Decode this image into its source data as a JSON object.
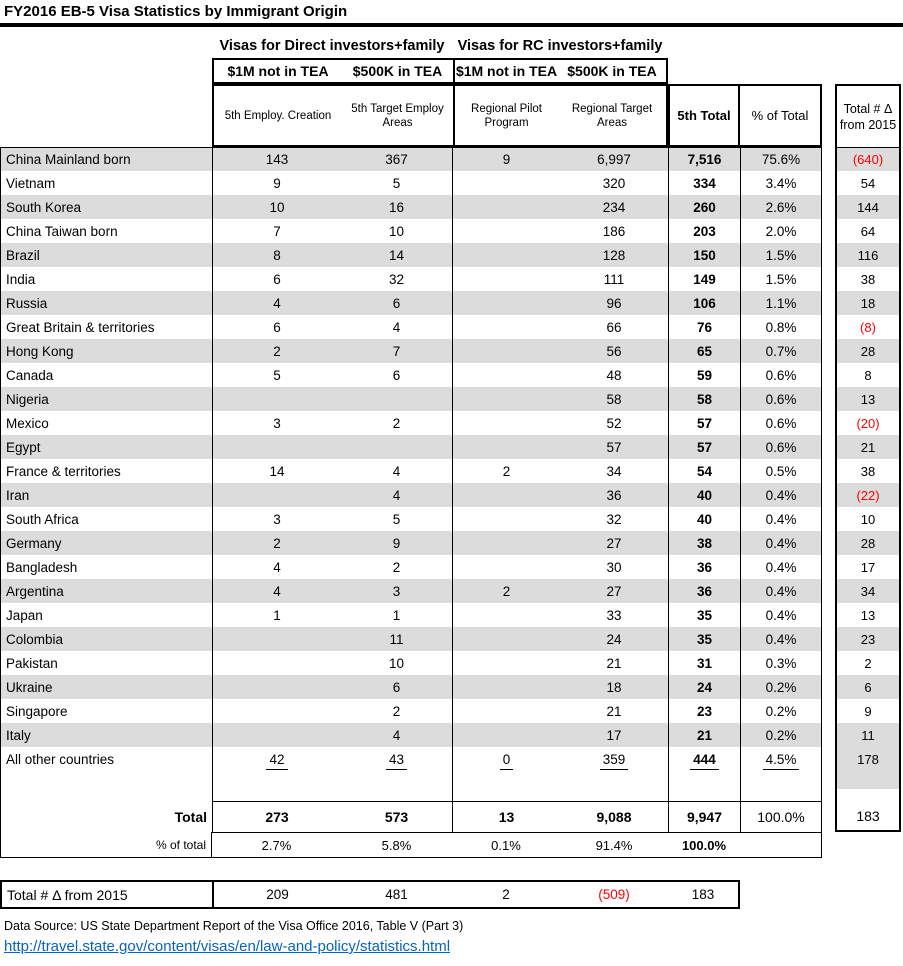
{
  "title": "FY2016 EB-5 Visa Statistics by Immigrant Origin",
  "header": {
    "group_direct": "Visas for Direct investors+family",
    "group_rc": "Visas for RC investors+family",
    "tier1": [
      "$1M not in TEA",
      "$500K in TEA",
      "$1M not in TEA",
      "$500K in TEA"
    ],
    "tier2": [
      "5th Employ. Creation",
      "5th Target Employ Areas",
      "Regional Pilot Program",
      "Regional Target Areas"
    ],
    "total_col": "5th Total",
    "pct_col": "% of Total",
    "delta_line1": "Total # Δ",
    "delta_line2": "from 2015"
  },
  "rows": [
    {
      "country": "China Mainland born",
      "c1": "143",
      "c2": "367",
      "c3": "9",
      "c4": "6,997",
      "total": "7,516",
      "pct": "75.6%",
      "delta": "(640)",
      "delta_negative": true
    },
    {
      "country": "Vietnam",
      "c1": "9",
      "c2": "5",
      "c3": "",
      "c4": "320",
      "total": "334",
      "pct": "3.4%",
      "delta": "54",
      "delta_negative": false
    },
    {
      "country": "South Korea",
      "c1": "10",
      "c2": "16",
      "c3": "",
      "c4": "234",
      "total": "260",
      "pct": "2.6%",
      "delta": "144",
      "delta_negative": false
    },
    {
      "country": "China Taiwan born",
      "c1": "7",
      "c2": "10",
      "c3": "",
      "c4": "186",
      "total": "203",
      "pct": "2.0%",
      "delta": "64",
      "delta_negative": false
    },
    {
      "country": "Brazil",
      "c1": "8",
      "c2": "14",
      "c3": "",
      "c4": "128",
      "total": "150",
      "pct": "1.5%",
      "delta": "116",
      "delta_negative": false
    },
    {
      "country": "India",
      "c1": "6",
      "c2": "32",
      "c3": "",
      "c4": "111",
      "total": "149",
      "pct": "1.5%",
      "delta": "38",
      "delta_negative": false
    },
    {
      "country": "Russia",
      "c1": "4",
      "c2": "6",
      "c3": "",
      "c4": "96",
      "total": "106",
      "pct": "1.1%",
      "delta": "18",
      "delta_negative": false
    },
    {
      "country": "Great Britain & territories",
      "c1": "6",
      "c2": "4",
      "c3": "",
      "c4": "66",
      "total": "76",
      "pct": "0.8%",
      "delta": "(8)",
      "delta_negative": true
    },
    {
      "country": "Hong Kong",
      "c1": "2",
      "c2": "7",
      "c3": "",
      "c4": "56",
      "total": "65",
      "pct": "0.7%",
      "delta": "28",
      "delta_negative": false
    },
    {
      "country": "Canada",
      "c1": "5",
      "c2": "6",
      "c3": "",
      "c4": "48",
      "total": "59",
      "pct": "0.6%",
      "delta": "8",
      "delta_negative": false
    },
    {
      "country": "Nigeria",
      "c1": "",
      "c2": "",
      "c3": "",
      "c4": "58",
      "total": "58",
      "pct": "0.6%",
      "delta": "13",
      "delta_negative": false
    },
    {
      "country": "Mexico",
      "c1": "3",
      "c2": "2",
      "c3": "",
      "c4": "52",
      "total": "57",
      "pct": "0.6%",
      "delta": "(20)",
      "delta_negative": true
    },
    {
      "country": "Egypt",
      "c1": "",
      "c2": "",
      "c3": "",
      "c4": "57",
      "total": "57",
      "pct": "0.6%",
      "delta": "21",
      "delta_negative": false
    },
    {
      "country": "France & territories",
      "c1": "14",
      "c2": "4",
      "c3": "2",
      "c4": "34",
      "total": "54",
      "pct": "0.5%",
      "delta": "38",
      "delta_negative": false
    },
    {
      "country": "Iran",
      "c1": "",
      "c2": "4",
      "c3": "",
      "c4": "36",
      "total": "40",
      "pct": "0.4%",
      "delta": "(22)",
      "delta_negative": true
    },
    {
      "country": "South Africa",
      "c1": "3",
      "c2": "5",
      "c3": "",
      "c4": "32",
      "total": "40",
      "pct": "0.4%",
      "delta": "10",
      "delta_negative": false
    },
    {
      "country": "Germany",
      "c1": "2",
      "c2": "9",
      "c3": "",
      "c4": "27",
      "total": "38",
      "pct": "0.4%",
      "delta": "28",
      "delta_negative": false
    },
    {
      "country": "Bangladesh",
      "c1": "4",
      "c2": "2",
      "c3": "",
      "c4": "30",
      "total": "36",
      "pct": "0.4%",
      "delta": "17",
      "delta_negative": false
    },
    {
      "country": "Argentina",
      "c1": "4",
      "c2": "3",
      "c3": "2",
      "c4": "27",
      "total": "36",
      "pct": "0.4%",
      "delta": "34",
      "delta_negative": false
    },
    {
      "country": "Japan",
      "c1": "1",
      "c2": "1",
      "c3": "",
      "c4": "33",
      "total": "35",
      "pct": "0.4%",
      "delta": "13",
      "delta_negative": false
    },
    {
      "country": "Colombia",
      "c1": "",
      "c2": "11",
      "c3": "",
      "c4": "24",
      "total": "35",
      "pct": "0.4%",
      "delta": "23",
      "delta_negative": false
    },
    {
      "country": "Pakistan",
      "c1": "",
      "c2": "10",
      "c3": "",
      "c4": "21",
      "total": "31",
      "pct": "0.3%",
      "delta": "2",
      "delta_negative": false
    },
    {
      "country": "Ukraine",
      "c1": "",
      "c2": "6",
      "c3": "",
      "c4": "18",
      "total": "24",
      "pct": "0.2%",
      "delta": "6",
      "delta_negative": false
    },
    {
      "country": "Singapore",
      "c1": "",
      "c2": "2",
      "c3": "",
      "c4": "21",
      "total": "23",
      "pct": "0.2%",
      "delta": "9",
      "delta_negative": false
    },
    {
      "country": "Italy",
      "c1": "",
      "c2": "4",
      "c3": "",
      "c4": "17",
      "total": "21",
      "pct": "0.2%",
      "delta": "11",
      "delta_negative": false
    },
    {
      "country": "All other countries",
      "c1": "42",
      "c2": "43",
      "c3": "0",
      "c4": "359",
      "total": "444",
      "pct": "4.5%",
      "delta": "178",
      "delta_negative": false,
      "underline": true
    }
  ],
  "totals_row": {
    "label": "Total",
    "c1": "273",
    "c2": "573",
    "c3": "13",
    "c4": "9,088",
    "total": "9,947",
    "pct": "100.0%",
    "delta": "183"
  },
  "pct_row": {
    "label": "% of total",
    "c1": "2.7%",
    "c2": "5.8%",
    "c3": "0.1%",
    "c4": "91.4%",
    "total": "100.0%",
    "pct": ""
  },
  "bottom_table": {
    "label": "Total # Δ from 2015",
    "c1": "209",
    "c2": "481",
    "c3": "2",
    "c4": "(509)",
    "c4_negative": true,
    "total": "183"
  },
  "footer": {
    "source": "Data Source: US State Department Report of the Visa Office 2016, Table V (Part 3)",
    "link": "http://travel.state.gov/content/visas/en/law-and-policy/statistics.html"
  },
  "colors": {
    "negative": "#FF0000",
    "link": "#0563C1",
    "stripe": "#DCDCDC"
  }
}
